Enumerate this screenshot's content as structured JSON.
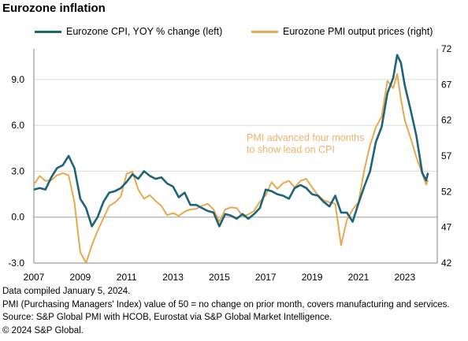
{
  "title": "Eurozone inflation",
  "colors": {
    "cpi": "#1e6477",
    "pmi": "#e8a84f",
    "axis": "#808080",
    "grid": "#d9d9d9",
    "annotation": "#f0b26c"
  },
  "legend": [
    {
      "label": "Eurozone CPI, YOY % change (left)",
      "color": "#1e6477"
    },
    {
      "label": "Eurozone PMI output prices (right)",
      "color": "#e8a84f"
    }
  ],
  "annotation": [
    "PMI advanced four months",
    "to show lead on CPI"
  ],
  "footer": [
    "Data compiled January 5, 2024.",
    "PMI (Purchasing Managers' Index) value of 50 = no change on prior month, covers manufacturing and services.",
    "Source: S&P Global PMI with HCOB, Eurostat via S&P Global Market Intelligence.",
    "© 2024 S&P Global."
  ],
  "chart_data": {
    "type": "line",
    "title": "Eurozone inflation",
    "x_ticks": [
      "2007",
      "2009",
      "2011",
      "2013",
      "2015",
      "2017",
      "2019",
      "2021",
      "2023"
    ],
    "x_range": [
      2007,
      2024.4
    ],
    "y_left": {
      "ticks": [
        "-3.0",
        "0.0",
        "3.0",
        "6.0",
        "9.0"
      ],
      "range": [
        -3,
        11
      ]
    },
    "y_right": {
      "ticks": [
        "42",
        "47",
        "52",
        "57",
        "62",
        "67",
        "72"
      ],
      "range": [
        42,
        72
      ]
    },
    "grid": "horizontal",
    "legend_position": "top",
    "series": [
      {
        "name": "Eurozone CPI, YOY % change (left)",
        "axis": "left",
        "x": [
          2007.0,
          2007.25,
          2007.5,
          2007.75,
          2008.0,
          2008.25,
          2008.5,
          2008.75,
          2009.0,
          2009.25,
          2009.5,
          2009.75,
          2010.0,
          2010.25,
          2010.5,
          2010.75,
          2011.0,
          2011.25,
          2011.5,
          2011.75,
          2012.0,
          2012.25,
          2012.5,
          2012.75,
          2013.0,
          2013.25,
          2013.5,
          2013.75,
          2014.0,
          2014.25,
          2014.5,
          2014.75,
          2015.0,
          2015.25,
          2015.5,
          2015.75,
          2016.0,
          2016.25,
          2016.5,
          2016.75,
          2017.0,
          2017.25,
          2017.5,
          2017.75,
          2018.0,
          2018.25,
          2018.5,
          2018.75,
          2019.0,
          2019.25,
          2019.5,
          2019.75,
          2020.0,
          2020.25,
          2020.5,
          2020.75,
          2021.0,
          2021.25,
          2021.5,
          2021.75,
          2022.0,
          2022.25,
          2022.5,
          2022.67,
          2022.83,
          2023.0,
          2023.25,
          2023.5,
          2023.75,
          2023.92,
          2024.0
        ],
        "values": [
          1.8,
          1.9,
          1.8,
          2.6,
          3.2,
          3.4,
          4.0,
          3.2,
          1.2,
          0.6,
          -0.6,
          0.0,
          1.0,
          1.6,
          1.7,
          1.9,
          2.3,
          2.8,
          2.5,
          3.0,
          2.7,
          2.5,
          2.6,
          2.2,
          2.0,
          1.3,
          1.6,
          0.8,
          0.8,
          0.6,
          0.4,
          0.3,
          -0.6,
          0.2,
          0.1,
          -0.1,
          0.2,
          -0.1,
          0.2,
          0.6,
          1.8,
          1.7,
          1.5,
          1.4,
          1.2,
          1.9,
          2.1,
          1.9,
          1.5,
          1.4,
          1.0,
          0.7,
          1.4,
          0.3,
          0.3,
          -0.3,
          0.9,
          2.0,
          3.0,
          4.9,
          5.9,
          8.1,
          9.1,
          10.6,
          10.1,
          8.6,
          7.0,
          5.3,
          2.9,
          2.4,
          2.9
        ]
      },
      {
        "name": "Eurozone PMI output prices (right)",
        "axis": "right",
        "x": [
          2007.0,
          2007.25,
          2007.5,
          2007.75,
          2008.0,
          2008.25,
          2008.5,
          2008.75,
          2009.0,
          2009.25,
          2009.5,
          2009.75,
          2010.0,
          2010.25,
          2010.5,
          2010.75,
          2011.0,
          2011.25,
          2011.5,
          2011.75,
          2012.0,
          2012.25,
          2012.5,
          2012.75,
          2013.0,
          2013.25,
          2013.5,
          2013.75,
          2014.0,
          2014.25,
          2014.5,
          2014.75,
          2015.0,
          2015.25,
          2015.5,
          2015.75,
          2016.0,
          2016.25,
          2016.5,
          2016.75,
          2017.0,
          2017.25,
          2017.5,
          2017.75,
          2018.0,
          2018.25,
          2018.5,
          2018.75,
          2019.0,
          2019.25,
          2019.5,
          2019.75,
          2020.0,
          2020.25,
          2020.5,
          2020.75,
          2021.0,
          2021.25,
          2021.5,
          2021.75,
          2022.0,
          2022.25,
          2022.5,
          2022.67,
          2022.83,
          2023.0,
          2023.25,
          2023.5,
          2023.75,
          2023.92,
          2024.0
        ],
        "values": [
          53.0,
          54.2,
          53.5,
          53.6,
          54.3,
          54.6,
          54.3,
          50.5,
          43.5,
          42.0,
          44.5,
          46.5,
          48.3,
          50.0,
          50.5,
          51.3,
          54.5,
          54.8,
          52.3,
          51.0,
          51.5,
          50.7,
          50.0,
          48.7,
          49.0,
          48.6,
          49.2,
          49.5,
          49.6,
          50.0,
          50.3,
          49.5,
          47.8,
          49.5,
          49.8,
          49.7,
          48.6,
          48.8,
          49.3,
          50.6,
          51.5,
          53.3,
          52.4,
          53.2,
          53.5,
          52.6,
          53.5,
          53.8,
          52.6,
          51.5,
          50.8,
          50.5,
          50.3,
          44.5,
          48.0,
          49.5,
          50.5,
          55.0,
          58.5,
          61.0,
          62.5,
          67.5,
          66.5,
          68.5,
          65.0,
          62.0,
          59.5,
          56.8,
          54.5,
          53.0,
          53.6
        ]
      }
    ]
  }
}
